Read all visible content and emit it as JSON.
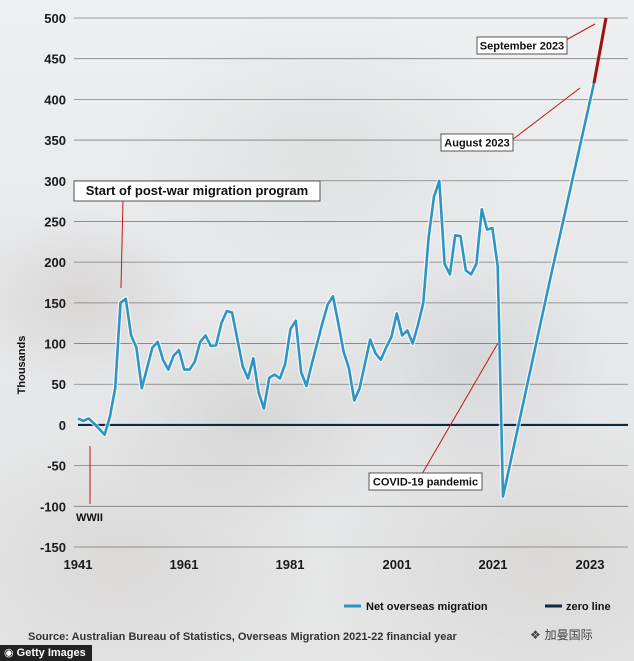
{
  "chart_data": {
    "type": "line",
    "title": "",
    "xlabel": "",
    "ylabel": "Thousands",
    "xlim": [
      1941,
      2023
    ],
    "ylim": [
      -150,
      500
    ],
    "x_ticks": [
      1941,
      1961,
      1981,
      2001,
      2021,
      2023
    ],
    "y_ticks": [
      500,
      450,
      400,
      350,
      300,
      250,
      200,
      150,
      100,
      50,
      0,
      -50,
      -100,
      -150
    ],
    "grid": true,
    "legend_position": "bottom",
    "series": [
      {
        "name": "Net overseas migration",
        "color": "#2e94c4",
        "points": [
          [
            1941,
            8
          ],
          [
            1942,
            5
          ],
          [
            1943,
            8
          ],
          [
            1944,
            2
          ],
          [
            1945,
            -5
          ],
          [
            1946,
            -12
          ],
          [
            1947,
            10
          ],
          [
            1948,
            45
          ],
          [
            1949,
            150
          ],
          [
            1950,
            155
          ],
          [
            1951,
            110
          ],
          [
            1952,
            95
          ],
          [
            1953,
            45
          ],
          [
            1954,
            70
          ],
          [
            1955,
            95
          ],
          [
            1956,
            102
          ],
          [
            1957,
            80
          ],
          [
            1958,
            68
          ],
          [
            1959,
            85
          ],
          [
            1960,
            92
          ],
          [
            1961,
            68
          ],
          [
            1962,
            68
          ],
          [
            1963,
            78
          ],
          [
            1964,
            102
          ],
          [
            1965,
            110
          ],
          [
            1966,
            97
          ],
          [
            1967,
            98
          ],
          [
            1968,
            125
          ],
          [
            1969,
            140
          ],
          [
            1970,
            138
          ],
          [
            1971,
            105
          ],
          [
            1972,
            72
          ],
          [
            1973,
            57
          ],
          [
            1974,
            82
          ],
          [
            1975,
            40
          ],
          [
            1976,
            20
          ],
          [
            1977,
            58
          ],
          [
            1978,
            62
          ],
          [
            1979,
            57
          ],
          [
            1980,
            75
          ],
          [
            1981,
            118
          ],
          [
            1982,
            128
          ],
          [
            1983,
            65
          ],
          [
            1984,
            48
          ],
          [
            1985,
            75
          ],
          [
            1986,
            100
          ],
          [
            1987,
            125
          ],
          [
            1988,
            148
          ],
          [
            1989,
            158
          ],
          [
            1990,
            125
          ],
          [
            1991,
            90
          ],
          [
            1992,
            70
          ],
          [
            1993,
            30
          ],
          [
            1994,
            45
          ],
          [
            1995,
            75
          ],
          [
            1996,
            105
          ],
          [
            1997,
            88
          ],
          [
            1998,
            80
          ],
          [
            1999,
            95
          ],
          [
            2000,
            108
          ],
          [
            2001,
            137
          ],
          [
            2002,
            110
          ],
          [
            2003,
            116
          ],
          [
            2004,
            100
          ],
          [
            2005,
            123
          ],
          [
            2006,
            150
          ],
          [
            2007,
            230
          ],
          [
            2008,
            280
          ],
          [
            2009,
            300
          ],
          [
            2010,
            198
          ],
          [
            2011,
            185
          ],
          [
            2012,
            233
          ],
          [
            2013,
            232
          ],
          [
            2014,
            190
          ],
          [
            2015,
            185
          ],
          [
            2016,
            198
          ],
          [
            2017,
            265
          ],
          [
            2018,
            240
          ],
          [
            2019,
            242
          ],
          [
            2020,
            195
          ],
          [
            2021,
            -88
          ],
          [
            2022,
            170
          ],
          [
            2023,
            420
          ]
        ]
      },
      {
        "name": "zero line",
        "color": "#0b2a44",
        "points": [
          [
            1941,
            0
          ],
          [
            2023,
            0
          ]
        ]
      }
    ],
    "highlight_segment": {
      "color": "#a01010",
      "points": [
        [
          2023,
          420
        ],
        [
          2023,
          500
        ]
      ]
    },
    "annotations": [
      {
        "label": "Start of post-war migration program",
        "x": 1949,
        "y": 150
      },
      {
        "label": "WWII",
        "x": 1942,
        "y": -10
      },
      {
        "label": "COVID-19 pandemic",
        "x": 2021,
        "y": 100
      },
      {
        "label": "August 2023",
        "x": 2023,
        "y": 420
      },
      {
        "label": "September 2023",
        "x": 2023,
        "y": 500
      }
    ]
  },
  "footer": {
    "source": "Source: Australian Bureau of Statistics, Overseas Migration 2021-22 financial year",
    "credit": "Getty Images",
    "watermark": "加曼国际"
  }
}
